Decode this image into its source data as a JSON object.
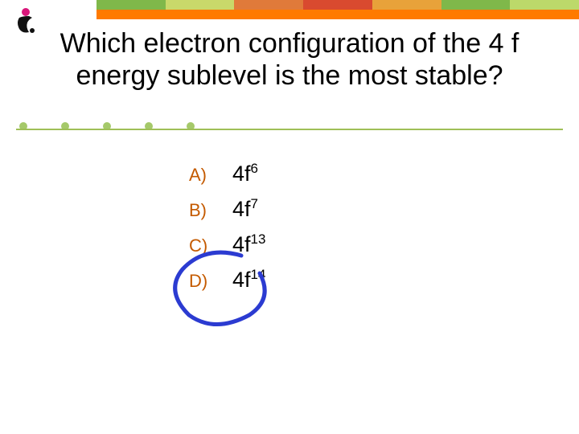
{
  "banner": {
    "colors": [
      "#7fb84a",
      "#c9d96a",
      "#e07a3a",
      "#d94a2f",
      "#e8a23a",
      "#7fb84a",
      "#bcd96a"
    ],
    "orange_bar": "#ff7a00"
  },
  "logo": {
    "dot_color": "#d9167a",
    "body_color": "#111111"
  },
  "question": "Which electron configuration of the 4 f energy sublevel is the most stable?",
  "dots": {
    "count": 5,
    "color": "#a5c96a"
  },
  "underline_color": "#9fbf57",
  "options": [
    {
      "label": "A)",
      "base": "4f",
      "sup": "6"
    },
    {
      "label": "B)",
      "base": "4f",
      "sup": "7"
    },
    {
      "label": "C)",
      "base": "4f",
      "sup": "13"
    },
    {
      "label": "D)",
      "base": "4f",
      "sup": "14"
    }
  ],
  "circle": {
    "stroke": "#2b3bd1",
    "stroke_width": 5
  },
  "label_color": "#c45a00",
  "value_color": "#000000"
}
